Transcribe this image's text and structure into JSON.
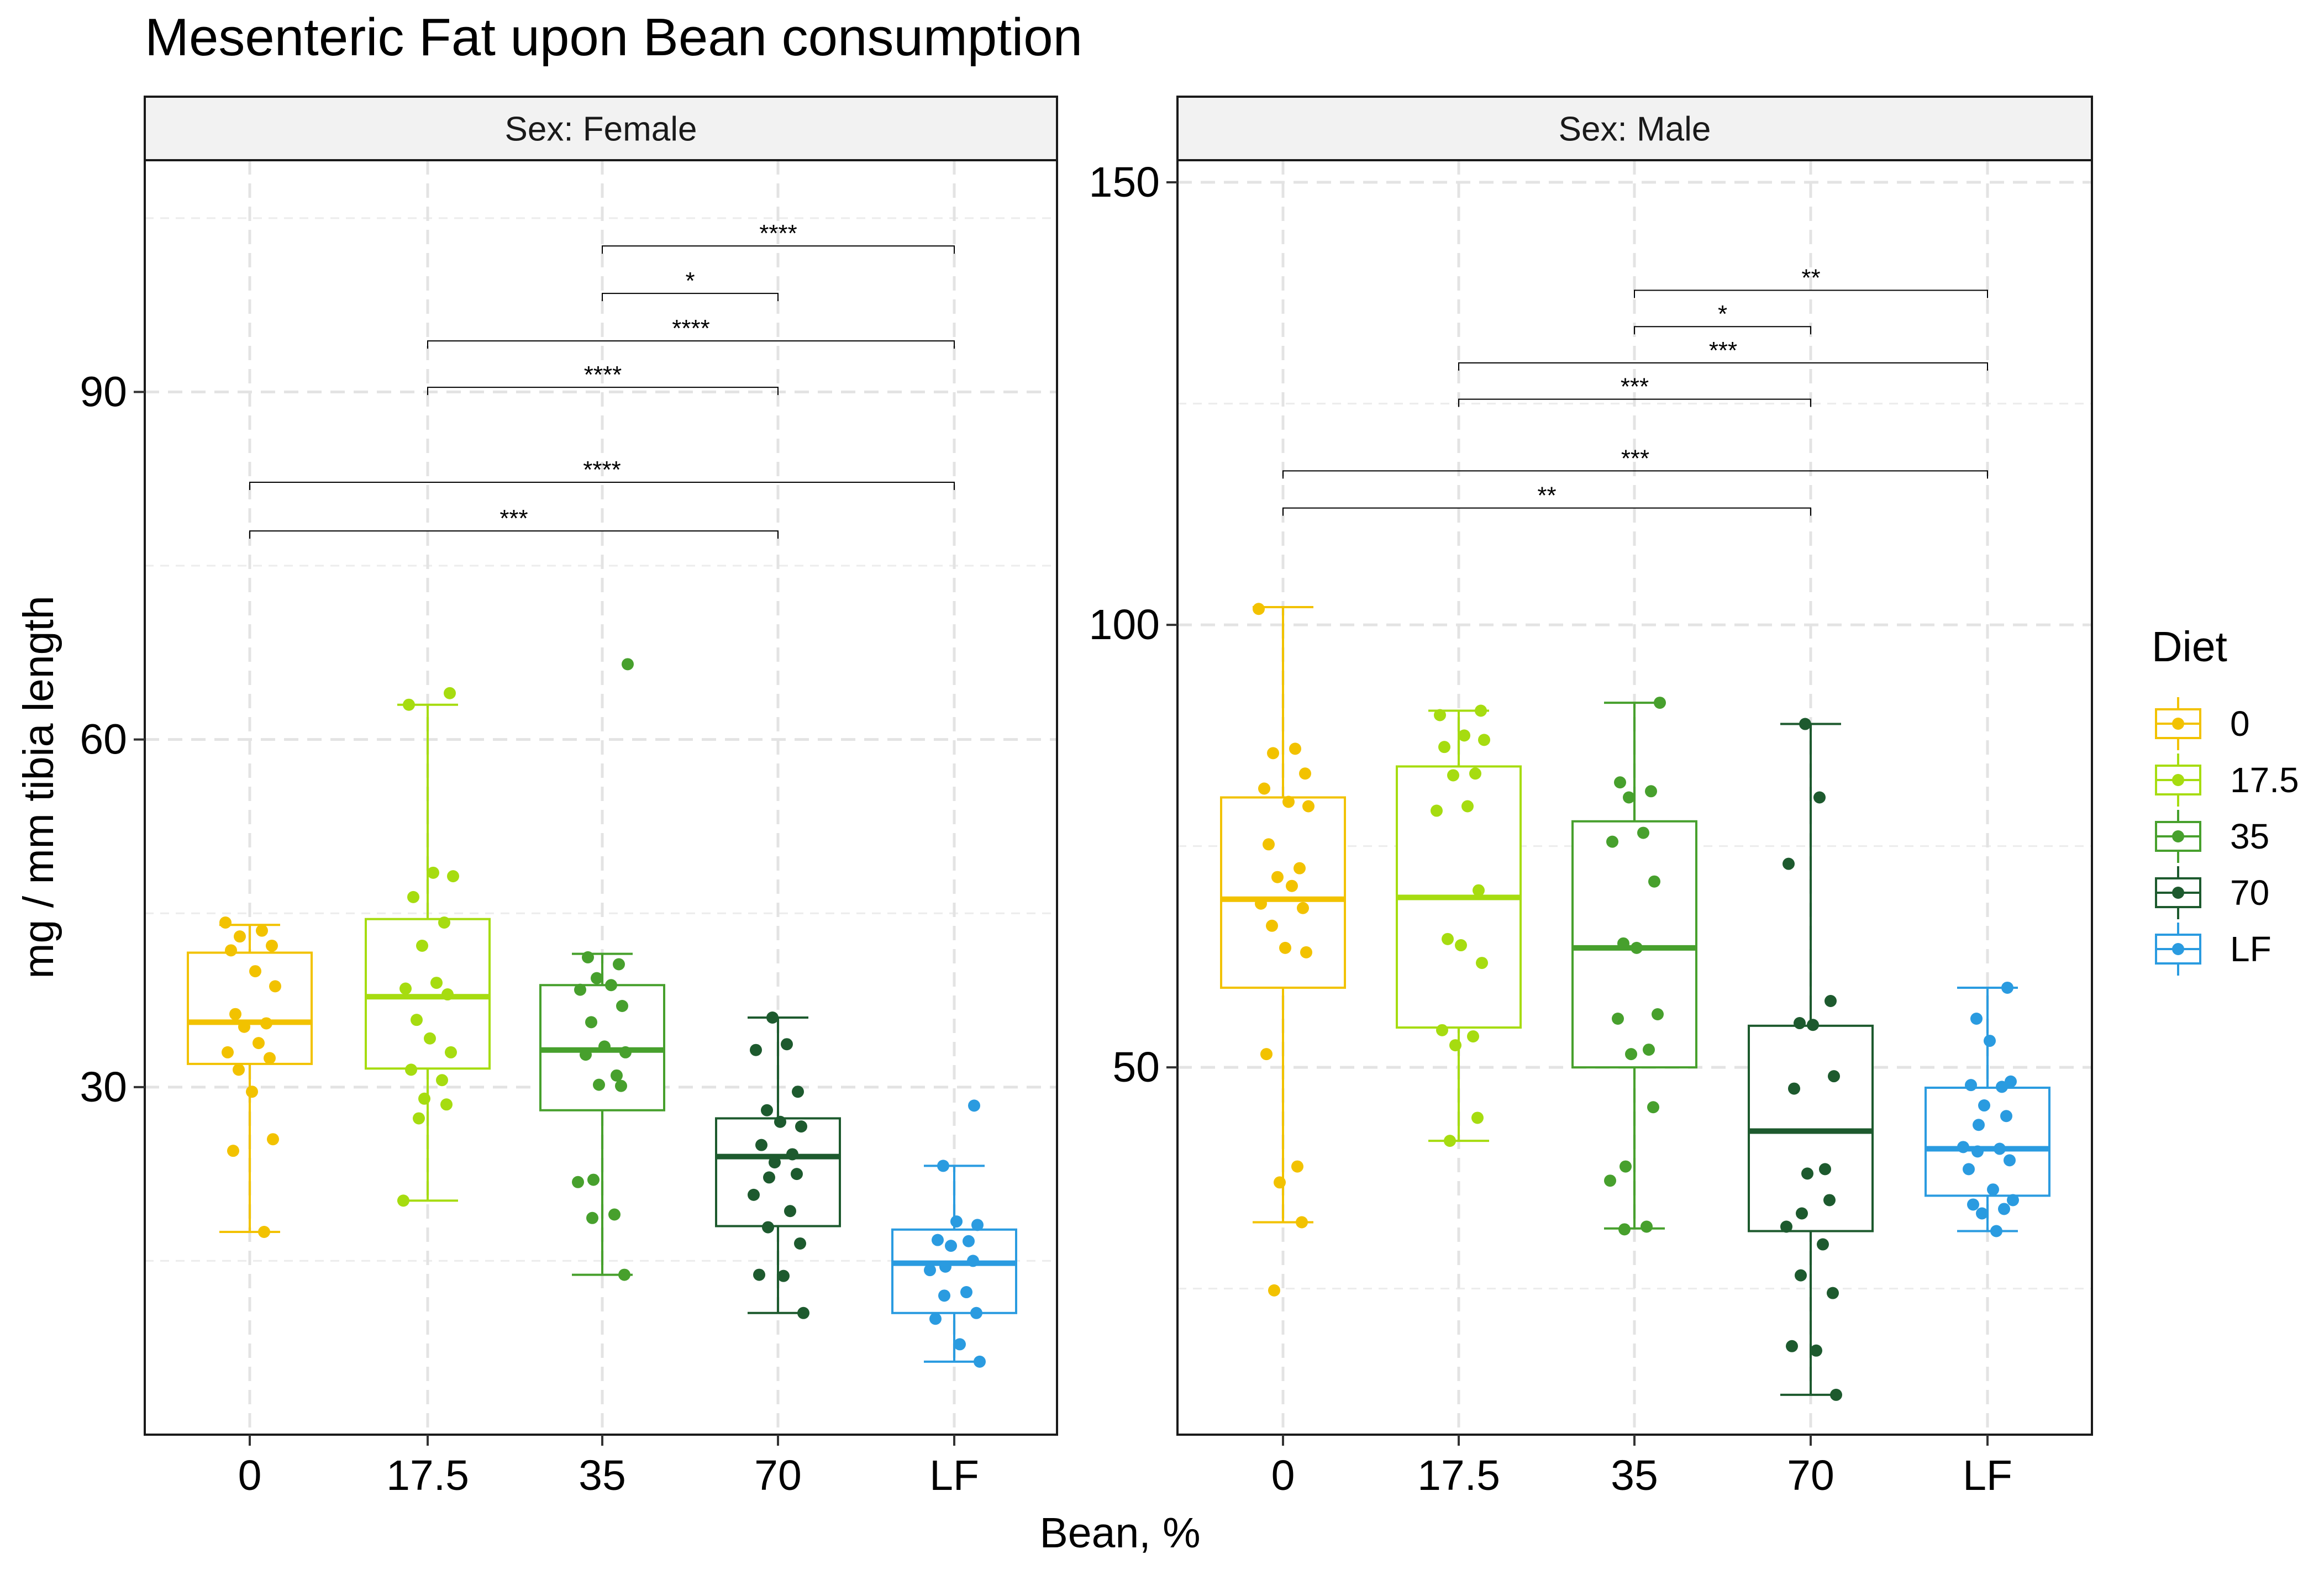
{
  "chart_data": {
    "type": "boxplot",
    "title": "Mesenteric Fat upon Bean consumption",
    "xlabel": "Bean, %",
    "ylabel": "mg / mm tibia length",
    "categories": [
      "0",
      "17.5",
      "35",
      "70",
      "LF"
    ],
    "legend": {
      "title": "Diet",
      "position": "right",
      "entries": [
        {
          "label": "0",
          "color": "#F2C200"
        },
        {
          "label": "17.5",
          "color": "#A6DC10"
        },
        {
          "label": "35",
          "color": "#47A02D"
        },
        {
          "label": "70",
          "color": "#1D5A2E"
        },
        {
          "label": "LF",
          "color": "#2A9BE0"
        }
      ]
    },
    "panels": [
      {
        "strip": "Sex: Female",
        "ylim": [
          0,
          110
        ],
        "yticks": [
          30,
          60,
          90
        ],
        "boxes": [
          {
            "category": "0",
            "whisker_low": 17.5,
            "q1": 32.0,
            "median": 35.6,
            "q3": 41.6,
            "whisker_high": 44.0
          },
          {
            "category": "17.5",
            "whisker_low": 20.2,
            "q1": 31.6,
            "median": 37.8,
            "q3": 44.5,
            "whisker_high": 63.0
          },
          {
            "category": "35",
            "whisker_low": 13.8,
            "q1": 28.0,
            "median": 33.2,
            "q3": 38.8,
            "whisker_high": 41.5
          },
          {
            "category": "70",
            "whisker_low": 10.5,
            "q1": 18.0,
            "median": 24.0,
            "q3": 27.3,
            "whisker_high": 36.0
          },
          {
            "category": "LF",
            "whisker_low": 6.3,
            "q1": 10.5,
            "median": 14.8,
            "q3": 17.7,
            "whisker_high": 23.2
          }
        ],
        "points": [
          {
            "category": "0",
            "values": [
              44.2,
              43.5,
              43.0,
              42.2,
              41.8,
              40.0,
              38.7,
              36.3,
              35.5,
              35.2,
              33.8,
              33.0,
              32.5,
              31.5,
              29.6,
              25.5,
              24.5,
              17.5
            ]
          },
          {
            "category": "17.5",
            "values": [
              64.0,
              63.0,
              48.5,
              48.2,
              46.4,
              44.2,
              42.2,
              39.0,
              38.5,
              38.0,
              35.8,
              34.2,
              33.0,
              31.5,
              30.6,
              29.0,
              28.5,
              27.3,
              20.2
            ]
          },
          {
            "category": "35",
            "values": [
              66.5,
              41.2,
              40.6,
              39.4,
              38.8,
              38.4,
              37.0,
              35.6,
              33.5,
              33.0,
              32.8,
              31.0,
              30.2,
              30.1,
              22.0,
              21.8,
              19.0,
              18.7,
              13.8
            ]
          },
          {
            "category": "70",
            "values": [
              36.0,
              33.7,
              33.2,
              29.6,
              28.0,
              27.0,
              26.6,
              25.0,
              24.2,
              23.5,
              22.5,
              22.2,
              20.7,
              19.3,
              17.9,
              16.5,
              13.8,
              13.7,
              10.5
            ]
          },
          {
            "category": "LF",
            "values": [
              28.4,
              23.2,
              18.4,
              18.1,
              16.8,
              16.7,
              16.3,
              15.0,
              14.5,
              14.2,
              12.3,
              12.0,
              10.5,
              10.0,
              7.8,
              6.3
            ]
          }
        ],
        "brackets": [
          {
            "from": "0",
            "to": "70",
            "y": 78.0,
            "label": "***"
          },
          {
            "from": "0",
            "to": "LF",
            "y": 82.2,
            "label": "****"
          },
          {
            "from": "17.5",
            "to": "70",
            "y": 90.4,
            "label": "****"
          },
          {
            "from": "17.5",
            "to": "LF",
            "y": 94.4,
            "label": "****"
          },
          {
            "from": "35",
            "to": "70",
            "y": 98.5,
            "label": "*"
          },
          {
            "from": "35",
            "to": "LF",
            "y": 102.6,
            "label": "****"
          }
        ]
      },
      {
        "strip": "Sex: Male",
        "ylim": [
          8.5,
          152.5
        ],
        "yticks": [
          50,
          100,
          150
        ],
        "boxes": [
          {
            "category": "0",
            "whisker_low": 32.5,
            "q1": 59.0,
            "median": 69.0,
            "q3": 80.5,
            "whisker_high": 102.0
          },
          {
            "category": "17.5",
            "whisker_low": 41.7,
            "q1": 54.5,
            "median": 69.2,
            "q3": 84.0,
            "whisker_high": 90.3
          },
          {
            "category": "35",
            "whisker_low": 31.8,
            "q1": 50.0,
            "median": 63.5,
            "q3": 77.8,
            "whisker_high": 91.2
          },
          {
            "category": "70",
            "whisker_low": 13.0,
            "q1": 31.5,
            "median": 42.8,
            "q3": 54.7,
            "whisker_high": 88.8
          },
          {
            "category": "LF",
            "whisker_low": 31.5,
            "q1": 35.5,
            "median": 40.8,
            "q3": 47.7,
            "whisker_high": 59.0
          }
        ],
        "points": [
          {
            "category": "0",
            "values": [
              101.8,
              86.0,
              85.5,
              83.2,
              81.5,
              80.0,
              79.5,
              75.2,
              72.5,
              71.5,
              70.5,
              68.5,
              68.0,
              66.0,
              63.5,
              63.0,
              51.5,
              38.8,
              37.0,
              32.5,
              24.8
            ]
          },
          {
            "category": "17.5",
            "values": [
              90.3,
              89.8,
              87.5,
              87.0,
              86.2,
              83.2,
              83.0,
              79.5,
              79.0,
              70.0,
              64.5,
              63.8,
              61.8,
              54.2,
              53.5,
              52.5,
              44.3,
              41.7
            ]
          },
          {
            "category": "35",
            "values": [
              91.2,
              82.2,
              81.2,
              80.5,
              76.5,
              75.5,
              71.0,
              64.0,
              63.5,
              56.0,
              55.5,
              52.0,
              51.5,
              45.5,
              38.8,
              37.2,
              32.0,
              31.7
            ]
          },
          {
            "category": "70",
            "values": [
              88.8,
              80.5,
              73.0,
              57.5,
              55.0,
              54.8,
              49.0,
              47.6,
              38.5,
              38.0,
              35.0,
              33.5,
              32.0,
              30.0,
              26.5,
              24.5,
              18.5,
              18.0,
              13.0
            ]
          },
          {
            "category": "LF",
            "values": [
              59.0,
              55.5,
              53.0,
              48.4,
              48.0,
              47.8,
              45.7,
              44.5,
              43.5,
              41.0,
              40.8,
              40.5,
              39.5,
              38.5,
              36.2,
              35.0,
              34.5,
              34.0,
              33.5,
              31.5
            ]
          }
        ],
        "brackets": [
          {
            "from": "0",
            "to": "70",
            "y": 113.2,
            "label": "**"
          },
          {
            "from": "0",
            "to": "LF",
            "y": 117.4,
            "label": "***"
          },
          {
            "from": "17.5",
            "to": "70",
            "y": 125.5,
            "label": "***"
          },
          {
            "from": "17.5",
            "to": "LF",
            "y": 129.6,
            "label": "***"
          },
          {
            "from": "35",
            "to": "70",
            "y": 133.7,
            "label": "*"
          },
          {
            "from": "35",
            "to": "LF",
            "y": 137.8,
            "label": "**"
          }
        ]
      }
    ]
  }
}
